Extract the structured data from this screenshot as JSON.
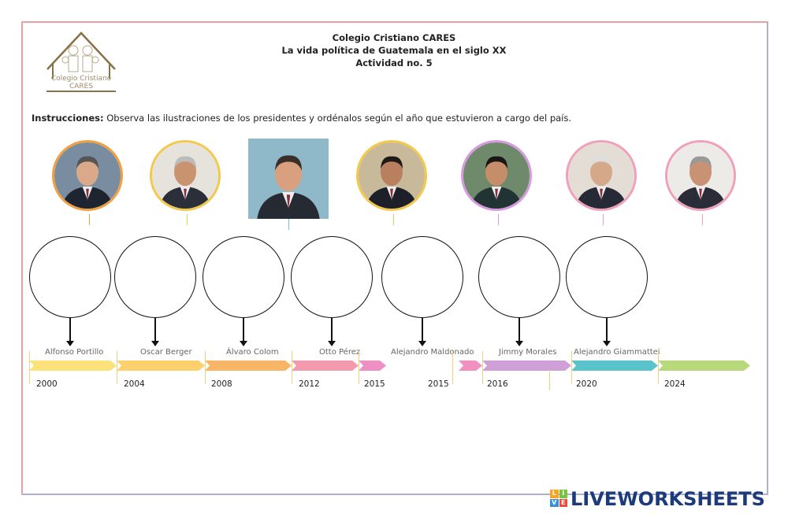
{
  "header": {
    "school": "Colegio Cristiano CARES",
    "subtitle": "La vida política de Guatemala en el siglo XX",
    "activity": "Actividad no. 5",
    "logo_text": "Colegio Cristiano CARES"
  },
  "instructions": {
    "label": "Instrucciones:",
    "text": " Observa las ilustraciones de los presidentes y ordénalos según el año que estuvieron a cargo del país."
  },
  "photos": [
    {
      "border": "#f0a040",
      "bg": "#7a8da0",
      "skin": "#d9a98a",
      "hair": "#555",
      "suit": "#1e2530"
    },
    {
      "border": "#f2c94c",
      "bg": "#e6e2dc",
      "skin": "#c9936f",
      "hair": "#bbb",
      "suit": "#2b2f3a"
    },
    {
      "border": "#6ac6cf",
      "bg": "#8fb9c9",
      "skin": "#d8a07e",
      "hair": "#3a2e28",
      "suit": "#262a33"
    },
    {
      "border": "#f2c94c",
      "bg": "#c8b99a",
      "skin": "#b98060",
      "hair": "#1f1a17",
      "suit": "#1d2028"
    },
    {
      "border": "#d79adf",
      "bg": "#6f8a6a",
      "skin": "#c58d6a",
      "hair": "#1a1614",
      "suit": "#233"
    },
    {
      "border": "#f0a0b8",
      "bg": "#e4ddd6",
      "skin": "#d6a88a",
      "hair": "#ddd",
      "suit": "#262a36"
    },
    {
      "border": "#f0a0b8",
      "bg": "#ecebe8",
      "skin": "#c99274",
      "hair": "#999",
      "suit": "#2a2d38"
    }
  ],
  "timeline": [
    {
      "name": "Alfonso Portillo",
      "year": "2000",
      "color": "#fde17a"
    },
    {
      "name": "Oscar Berger",
      "year": "2004",
      "color": "#fcd06c"
    },
    {
      "name": "Álvaro Colom",
      "year": "2008",
      "color": "#f8b566"
    },
    {
      "name": "Otto Pérez",
      "year": "2012",
      "color": "#f39aae"
    },
    {
      "name": "",
      "year": "2015",
      "color": "#ee90c4"
    },
    {
      "name": "Alejandro Maldonado",
      "year": "2015",
      "color": "#f191c0"
    },
    {
      "name": "Jimmy Morales",
      "year": "2016",
      "color": "#cf9fd8"
    },
    {
      "name": "Alejandro Giammattei",
      "year": "2020",
      "color": "#5bc3cb"
    },
    {
      "name": "",
      "year": "2024",
      "color": "#b7d979"
    }
  ],
  "brand": {
    "name": "LIVEWORKSHEETS",
    "letters": [
      "L",
      "I",
      "V",
      "E"
    ],
    "color": "#1d3a7a"
  }
}
